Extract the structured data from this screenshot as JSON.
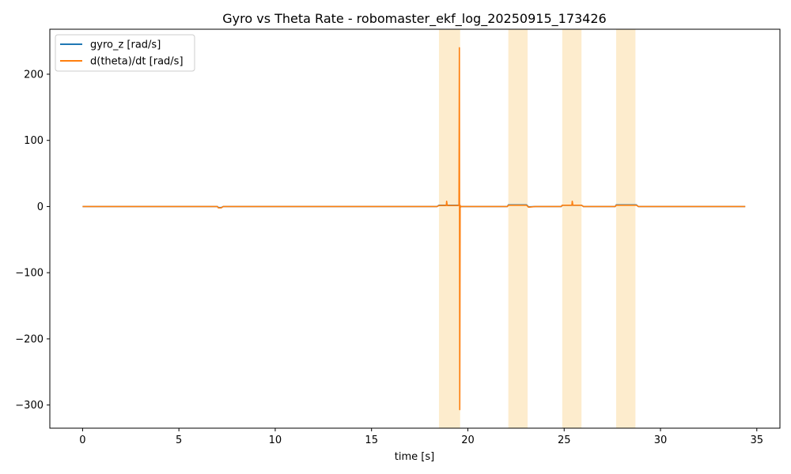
{
  "chart_data": {
    "type": "line",
    "title": "Gyro vs Theta Rate - robomaster_ekf_log_20250915_173426",
    "xlabel": "time [s]",
    "ylabel": "",
    "xlim": [
      -1.7,
      36.2
    ],
    "ylim": [
      -335,
      268
    ],
    "xticks": [
      0,
      5,
      10,
      15,
      20,
      25,
      30,
      35
    ],
    "yticks": [
      -300,
      -200,
      -100,
      0,
      100,
      200
    ],
    "grid": false,
    "legend": {
      "placement": "top-left"
    },
    "highlight_color": "#fde9c4",
    "highlight_bands": [
      {
        "x0": 18.5,
        "x1": 19.6
      },
      {
        "x0": 22.1,
        "x1": 23.1
      },
      {
        "x0": 24.9,
        "x1": 25.9
      },
      {
        "x0": 27.7,
        "x1": 28.7
      }
    ],
    "series": [
      {
        "name": "gyro_z [rad/s]",
        "color": "#1f77b4",
        "x": [
          0,
          7.0,
          7.05,
          7.2,
          7.3,
          18.4,
          18.5,
          19.55,
          19.6,
          22.05,
          22.1,
          23.05,
          23.15,
          23.5,
          24.85,
          24.9,
          25.9,
          26.0,
          27.65,
          27.7,
          28.75,
          28.85,
          34.4
        ],
        "y": [
          0,
          0,
          -1.5,
          -1.5,
          0,
          0,
          2,
          2,
          0,
          0,
          2.5,
          2.5,
          -0.5,
          0,
          0,
          2,
          2,
          0,
          0,
          2.5,
          2.5,
          0,
          0
        ]
      },
      {
        "name": "d(theta)/dt [rad/s]",
        "color": "#ff7f0e",
        "x": [
          0,
          7.0,
          7.05,
          7.2,
          7.3,
          18.4,
          18.5,
          18.88,
          18.9,
          18.93,
          19.5,
          19.54,
          19.56,
          19.58,
          19.6,
          19.62,
          19.64,
          22.05,
          22.1,
          23.05,
          23.15,
          23.5,
          24.85,
          24.9,
          25.4,
          25.42,
          25.45,
          25.9,
          26.0,
          27.65,
          27.7,
          28.75,
          28.85,
          34.4
        ],
        "y": [
          0,
          0,
          -2,
          -2,
          0,
          0,
          1.5,
          1.5,
          8,
          1.5,
          1.5,
          3,
          240,
          -307,
          2,
          -1,
          0,
          0,
          2,
          2,
          -1,
          0,
          0,
          2,
          2,
          8,
          2,
          2,
          0,
          0,
          2,
          2,
          0,
          0
        ]
      }
    ]
  }
}
